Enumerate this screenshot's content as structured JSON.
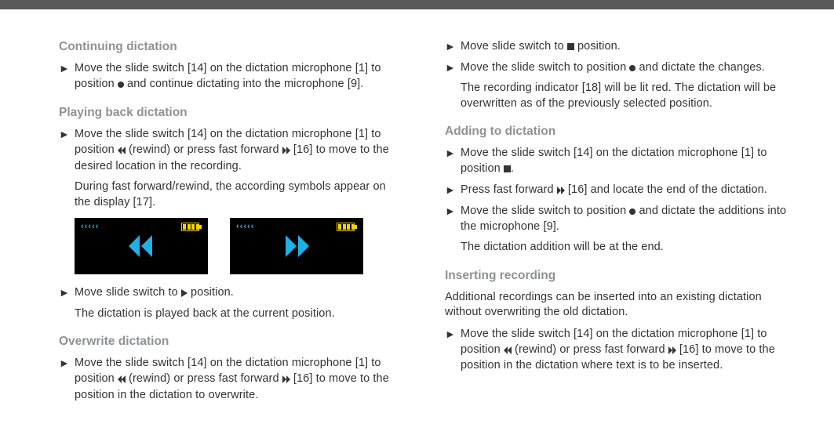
{
  "display": {
    "status_chevrons": "‹‹‹‹‹",
    "battery_color": "#f3d400",
    "icon_color": "#1fb0e6",
    "bg": "#000000"
  },
  "left": {
    "s1": {
      "title": "Continuing dictation",
      "step1_a": "Move the slide switch [14] on the dictation microphone [1] to position ",
      "step1_b": " and continue dictating into the microphone [9]."
    },
    "s2": {
      "title": "Playing back dictation",
      "step1_a": "Move the slide switch [14] on the dictation microphone [1] to position ",
      "step1_b": " (rewind) or press fast forward ",
      "step1_c": " [16] to move to the desired location in the recording.",
      "note1": "During fast forward/rewind, the according symbols appear on the display [17].",
      "step2_a": "Move slide switch to ",
      "step2_b": " position.",
      "note2": "The dictation is played back at the current position."
    },
    "s3": {
      "title": "Overwrite dictation",
      "step1_a": "Move the slide switch [14] on the dictation microphone [1] to position ",
      "step1_b": " (rewind) or press fast forward ",
      "step1_c": " [16] to move to the position in the dictation to overwrite."
    }
  },
  "right": {
    "s3b": {
      "step1_a": "Move slide switch to ",
      "step1_b": " position.",
      "step2_a": "Move the slide switch to position ",
      "step2_b": " and dictate the changes.",
      "note1": "The recording indicator [18] will be lit red. The dictation will be overwritten as of the previously selected position."
    },
    "s4": {
      "title": "Adding to dictation",
      "step1_a": "Move the slide switch [14] on the dictation microphone [1] to position ",
      "step1_b": ".",
      "step2_a": "Press fast forward ",
      "step2_b": " [16] and locate the end of the dictation.",
      "step3_a": "Move the slide switch to position ",
      "step3_b": " and dictate the additions into the microphone [9].",
      "note1": "The dictation addition will be at the end."
    },
    "s5": {
      "title": "Inserting recording",
      "intro": "Additional recordings can be inserted into an existing dictation without overwriting the old dictation.",
      "step1_a": "Move the slide switch [14] on the dictation microphone [1] to position ",
      "step1_b": " (rewind) or press fast forward ",
      "step1_c": " [16] to move to the position in the dictation where text is to be inserted."
    }
  }
}
